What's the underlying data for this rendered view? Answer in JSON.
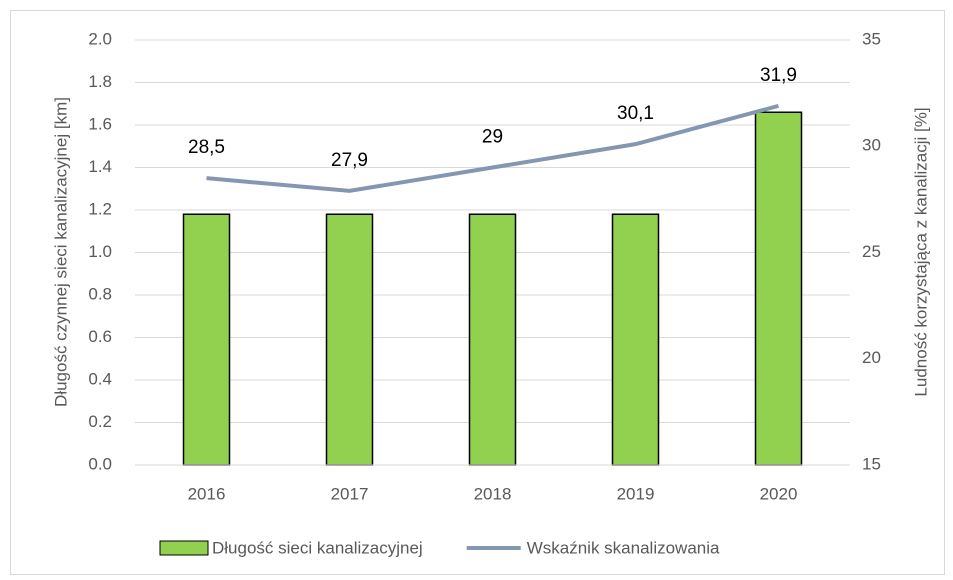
{
  "chart_data": {
    "type": "bar",
    "categories": [
      "2016",
      "2017",
      "2018",
      "2019",
      "2020"
    ],
    "series": [
      {
        "name": "Długość sieci kanalizacyjnej",
        "type": "bar",
        "axis": "y",
        "color": "#92d050",
        "values": [
          1.18,
          1.18,
          1.18,
          1.18,
          1.66
        ]
      },
      {
        "name": "Wskaźnik skanalizowania",
        "type": "line",
        "axis": "y2",
        "color": "#8497b0",
        "values": [
          28.5,
          27.9,
          29,
          30.1,
          31.9
        ],
        "value_labels": [
          "28,5",
          "27,9",
          "29",
          "30,1",
          "31,9"
        ]
      }
    ],
    "ylabel": "Długość czynnej sieci kanalizacyjnej [km]",
    "y2label": "Ludność korzystająca z kanalizacji [%]",
    "ylim": [
      0,
      2
    ],
    "yticks": [
      {
        "value": 0,
        "label": "0.0"
      },
      0.2,
      0.4,
      0.6,
      0.8,
      {
        "value": 1,
        "label": "1.0"
      },
      1.2,
      1.4,
      1.6,
      1.8,
      {
        "value": 2,
        "label": "2.0"
      }
    ],
    "y2lim": [
      15,
      35
    ],
    "y2ticks": [
      15,
      20,
      25,
      30,
      35
    ],
    "grid": true,
    "legend": "bottom"
  }
}
